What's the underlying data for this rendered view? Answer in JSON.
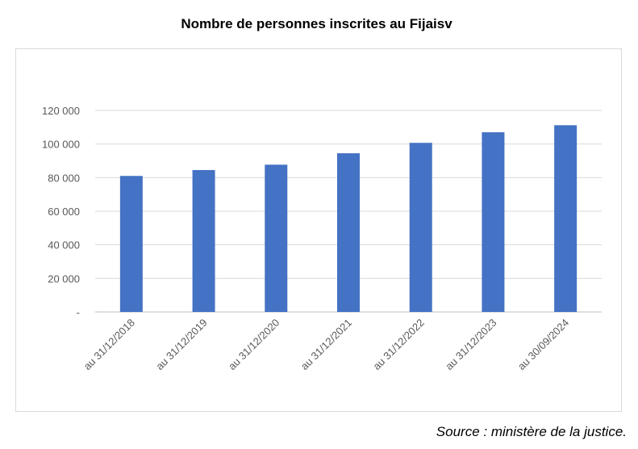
{
  "chart_data": {
    "type": "bar",
    "title": "Nombre de personnes inscrites au Fijaisv",
    "categories": [
      "au 31/12/2018",
      "au 31/12/2019",
      "au 31/12/2020",
      "au 31/12/2021",
      "au 31/12/2022",
      "au 31/12/2023",
      "au 30/09/2024"
    ],
    "values": [
      81000,
      84500,
      87700,
      94500,
      100700,
      107000,
      111200
    ],
    "ylim": [
      0,
      120000
    ],
    "yticks": [
      0,
      20000,
      40000,
      60000,
      80000,
      100000,
      120000
    ],
    "ytick_labels": [
      "-",
      "20 000",
      "40 000",
      "60 000",
      "80 000",
      "100 000",
      "120 000"
    ],
    "grid": true,
    "bar_color": "#4472c4"
  },
  "source": "Source : ministère de la justice."
}
